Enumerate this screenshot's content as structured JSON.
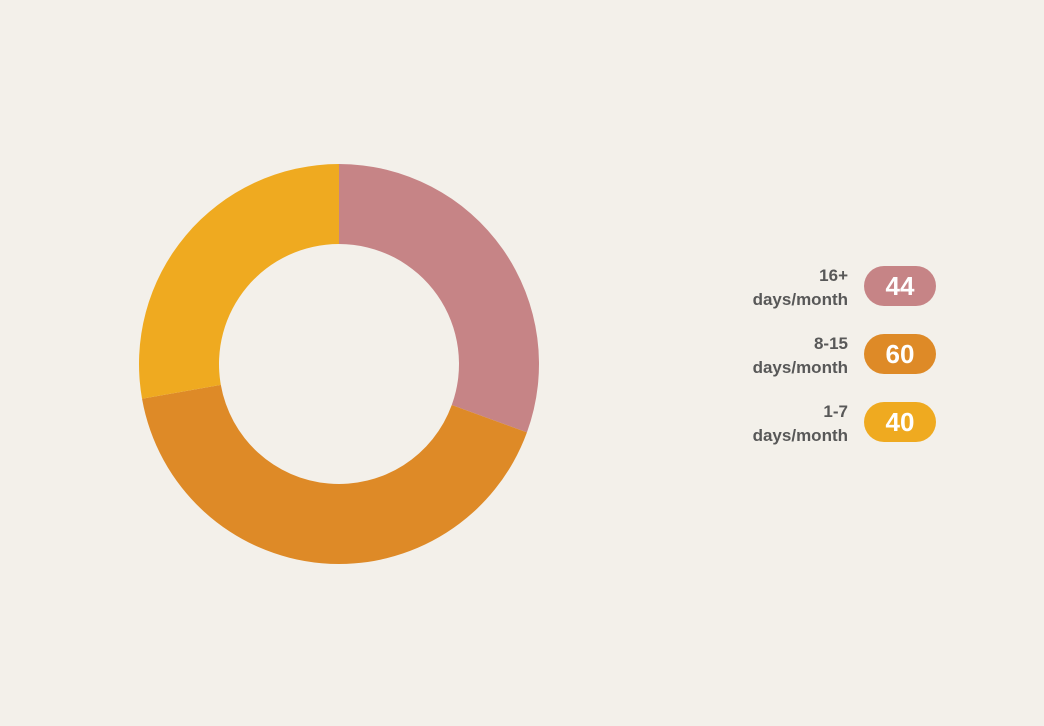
{
  "chart_data": {
    "type": "pie",
    "variant": "donut",
    "legend_placement": "right",
    "slices": [
      {
        "label_line1": "16+",
        "label_line2": "days/month",
        "value": 44,
        "value_label": "44",
        "color": "#c68486"
      },
      {
        "label_line1": "8-15",
        "label_line2": "days/month",
        "value": 60,
        "value_label": "60",
        "color": "#de8a27"
      },
      {
        "label_line1": "1-7",
        "label_line2": "days/month",
        "value": 40,
        "value_label": "40",
        "color": "#efaa20"
      }
    ]
  },
  "colors": {
    "background": "#f3f0ea",
    "label_text": "#585858"
  }
}
